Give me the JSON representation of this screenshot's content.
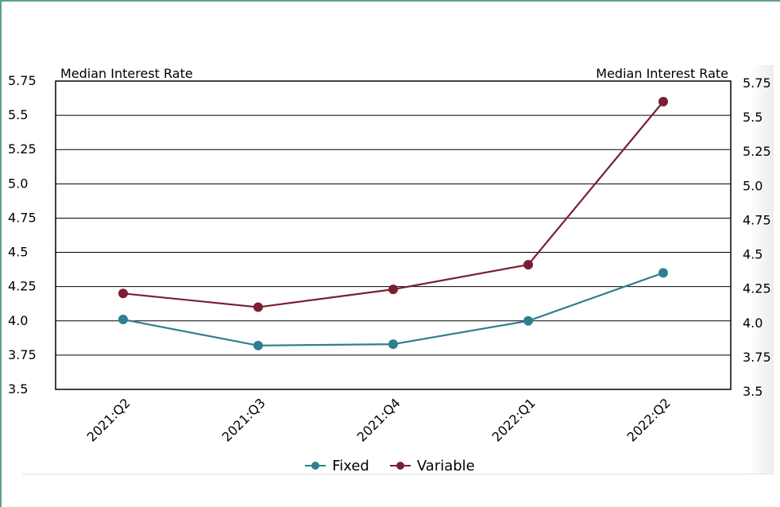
{
  "chart_data": {
    "type": "line",
    "categories": [
      "2021:Q2",
      "2021:Q3",
      "2021:Q4",
      "2022:Q1",
      "2022:Q2"
    ],
    "series": [
      {
        "name": "Fixed",
        "values": [
          4.01,
          3.82,
          3.83,
          4.0,
          4.35
        ],
        "color": "#2e7f8f"
      },
      {
        "name": "Variable",
        "values": [
          4.2,
          4.1,
          4.23,
          4.41,
          5.6
        ],
        "color": "#7a1f33"
      }
    ],
    "ylabel_left": "Median Interest Rate",
    "ylabel_right": "Median Interest Rate",
    "ylim": [
      3.5,
      5.75
    ],
    "yticks": [
      "3.5",
      "3.75",
      "4.0",
      "4.25",
      "4.5",
      "4.75",
      "5.0",
      "5.25",
      "5.5",
      "5.75"
    ],
    "grid": true,
    "legend_position": "bottom"
  }
}
